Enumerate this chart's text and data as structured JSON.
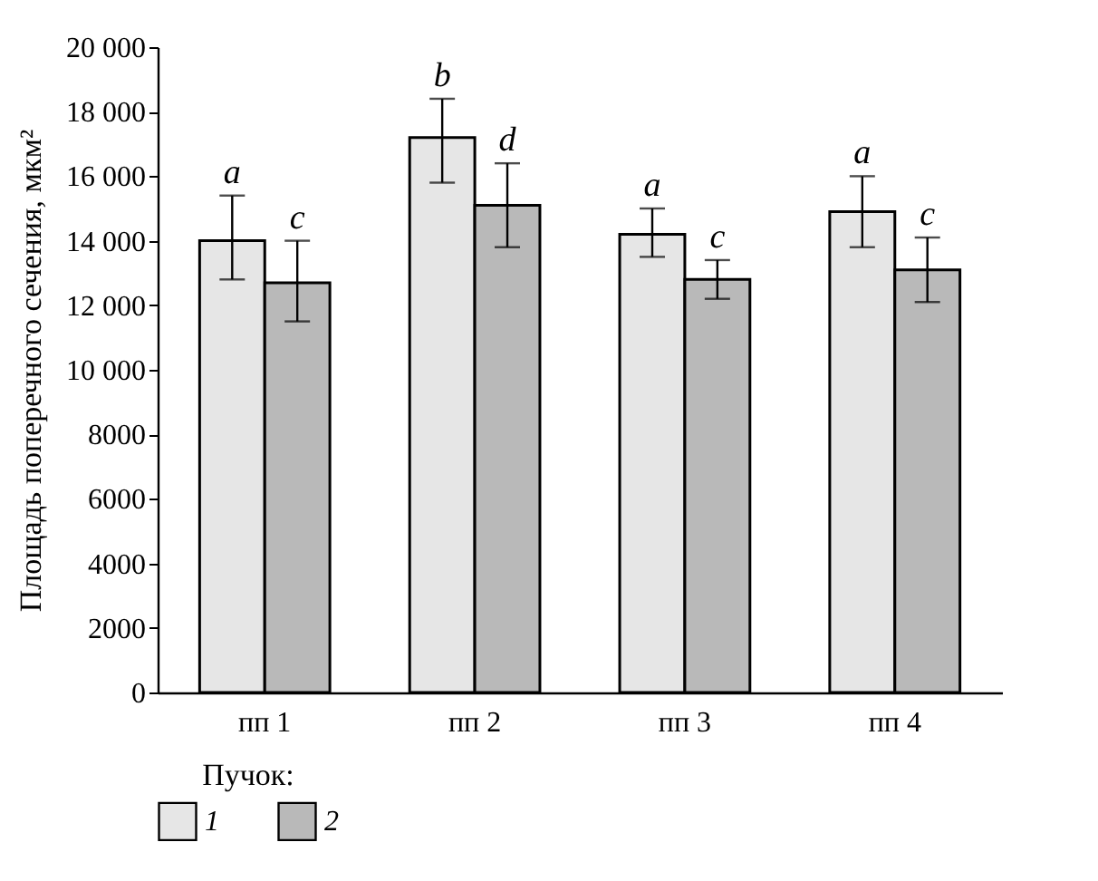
{
  "chart_data": {
    "type": "bar",
    "ylabel": "Площадь поперечного сечения, мкм²",
    "legend_title": "Пучок:",
    "legend": "bottom",
    "categories": [
      "пп 1",
      "пп 2",
      "пп 3",
      "пп 4"
    ],
    "series": [
      {
        "name": "1",
        "color": "#e6e6e6",
        "values": [
          14000,
          17200,
          14200,
          14900
        ],
        "errors": [
          [
            12800,
            15400
          ],
          [
            15800,
            18400
          ],
          [
            13500,
            15000
          ],
          [
            13800,
            16000
          ]
        ]
      },
      {
        "name": "2",
        "color": "#b9b9b9",
        "values": [
          12700,
          15100,
          12800,
          13100
        ],
        "errors": [
          [
            11500,
            14000
          ],
          [
            13800,
            16400
          ],
          [
            12200,
            13400
          ],
          [
            12100,
            14100
          ]
        ]
      }
    ],
    "ylim": [
      0,
      20000
    ],
    "yticks": [
      0,
      2000,
      4000,
      6000,
      8000,
      {
        "value": 10000,
        "label": "10 000"
      },
      {
        "value": 12000,
        "label": "12 000"
      },
      {
        "value": 14000,
        "label": "14 000"
      },
      {
        "value": 16000,
        "label": "16 000"
      },
      {
        "value": 18000,
        "label": "18 000"
      },
      {
        "value": 20000,
        "label": "20 000"
      }
    ],
    "grid": false,
    "annotations": [
      "a",
      "c",
      "b",
      "d",
      "a",
      "c",
      "a",
      "c"
    ]
  }
}
